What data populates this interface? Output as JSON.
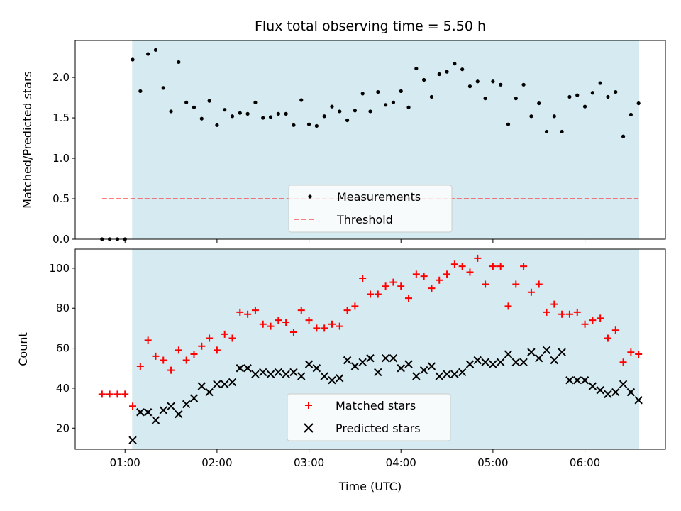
{
  "chart_data": [
    {
      "type": "scatter",
      "title": "Flux total observing time = 5.50 h",
      "ylabel": "Matched/Predicted stars",
      "xlabel": "",
      "x_units": "minutes since 00:00 UTC",
      "xlim": [
        27.5,
        412.5
      ],
      "ylim": [
        0,
        2.457
      ],
      "yticks": [
        0.0,
        0.5,
        1.0,
        1.5,
        2.0
      ],
      "ytick_labels": [
        "0.0",
        "0.5",
        "1.0",
        "1.5",
        "2.0"
      ],
      "shaded_span": [
        65,
        395
      ],
      "legend": {
        "placement": "lower-center",
        "entries": [
          "Measurements",
          "Threshold"
        ]
      },
      "threshold": {
        "name": "Threshold",
        "value": 0.5,
        "x_range": [
          45,
          395
        ],
        "color": "#ff0000"
      },
      "series": [
        {
          "name": "Measurements",
          "color": "#000000",
          "values": [
            0,
            0,
            0,
            0,
            2.22,
            1.83,
            2.29,
            2.34,
            1.87,
            1.58,
            2.19,
            1.69,
            1.63,
            1.49,
            1.71,
            1.41,
            1.6,
            1.52,
            1.56,
            1.55,
            1.69,
            1.5,
            1.51,
            1.55,
            1.55,
            1.41,
            1.72,
            1.42,
            1.4,
            1.52,
            1.64,
            1.58,
            1.47,
            1.59,
            1.8,
            1.58,
            1.82,
            1.66,
            1.69,
            1.83,
            1.63,
            2.11,
            1.97,
            1.76,
            2.04,
            2.07,
            2.17,
            2.1,
            1.89,
            1.95,
            1.74,
            1.95,
            1.91,
            1.42,
            1.74,
            1.91,
            1.52,
            1.68,
            1.33,
            1.52,
            1.33,
            1.76,
            1.78,
            1.64,
            1.81,
            1.93,
            1.76,
            1.82,
            1.27,
            1.54,
            1.68
          ]
        }
      ]
    },
    {
      "type": "scatter",
      "title": "",
      "ylabel": "Count",
      "xlabel": "Time (UTC)",
      "x_units": "minutes since 00:00 UTC",
      "xlim": [
        27.5,
        412.5
      ],
      "ylim": [
        9.45,
        109.55
      ],
      "yticks": [
        20,
        40,
        60,
        80,
        100
      ],
      "ytick_labels": [
        "20",
        "40",
        "60",
        "80",
        "100"
      ],
      "xticks": [
        60,
        120,
        180,
        240,
        300,
        360
      ],
      "xtick_labels": [
        "01:00",
        "02:00",
        "03:00",
        "04:00",
        "05:00",
        "06:00"
      ],
      "shaded_span": [
        65,
        395
      ],
      "legend": {
        "placement": "lower-center",
        "entries": [
          "Matched stars",
          "Predicted stars"
        ]
      },
      "series": [
        {
          "name": "Matched stars",
          "color": "#ff0000",
          "marker": "+",
          "values": [
            37,
            37,
            37,
            37,
            31,
            51,
            64,
            56,
            54,
            49,
            59,
            54,
            57,
            61,
            65,
            59,
            67,
            65,
            78,
            77,
            79,
            72,
            71,
            74,
            73,
            68,
            79,
            74,
            70,
            70,
            72,
            71,
            79,
            81,
            95,
            87,
            87,
            91,
            93,
            91,
            85,
            97,
            96,
            90,
            94,
            97,
            102,
            101,
            98,
            105,
            92,
            101,
            101,
            81,
            92,
            101,
            88,
            92,
            78,
            82,
            77,
            77,
            78,
            72,
            74,
            75,
            65,
            69,
            53,
            58,
            57
          ]
        },
        {
          "name": "Predicted stars",
          "color": "#000000",
          "marker": "x",
          "x_offset_points": 4,
          "values": [
            14,
            28,
            28,
            24,
            29,
            31,
            27,
            32,
            35,
            41,
            38,
            42,
            42,
            43,
            50,
            50,
            47,
            48,
            47,
            48,
            47,
            48,
            46,
            52,
            50,
            46,
            44,
            45,
            54,
            51,
            53,
            55,
            48,
            55,
            55,
            50,
            52,
            46,
            49,
            51,
            46,
            47,
            47,
            48,
            52,
            54,
            53,
            52,
            53,
            57,
            53,
            53,
            58,
            55,
            59,
            54,
            58,
            44,
            44,
            44,
            41,
            39,
            37,
            38,
            42,
            38,
            34
          ]
        }
      ]
    }
  ],
  "x_minutes": [
    45,
    50,
    55,
    60,
    65,
    70,
    75,
    80,
    85,
    90,
    95,
    100,
    105,
    110,
    115,
    120,
    125,
    130,
    135,
    140,
    145,
    150,
    155,
    160,
    165,
    170,
    175,
    180,
    185,
    190,
    195,
    200,
    205,
    210,
    215,
    220,
    225,
    230,
    235,
    240,
    245,
    250,
    255,
    260,
    265,
    270,
    275,
    280,
    285,
    290,
    295,
    300,
    305,
    310,
    315,
    320,
    325,
    330,
    335,
    340,
    345,
    350,
    355,
    360,
    365,
    370,
    375,
    380,
    385,
    390,
    395
  ]
}
